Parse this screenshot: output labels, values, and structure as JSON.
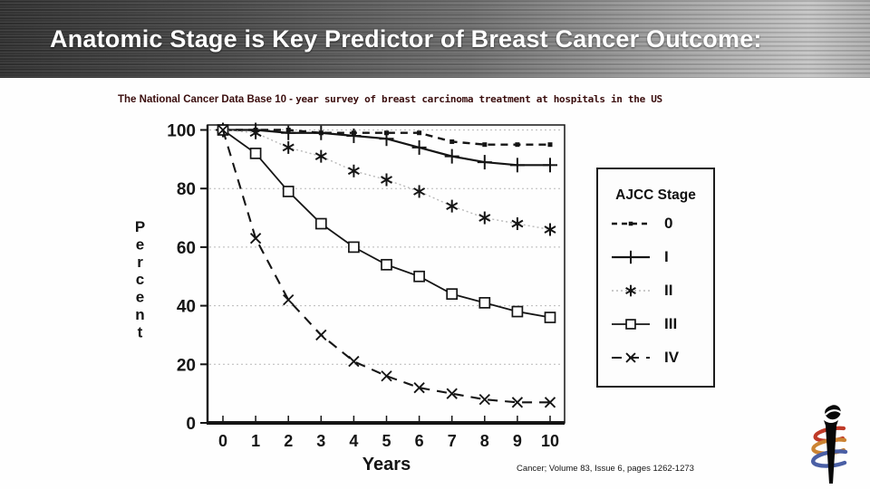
{
  "slide": {
    "title": "Anatomic Stage is Key Predictor of Breast Cancer Outcome:",
    "subtitle_part1": "The National Cancer Data Base 10 - ",
    "subtitle_part2": "year survey of breast carcinoma treatment at hospitals in the US",
    "citation": "Cancer; Volume 83, Issue 6, pages 1262-1273"
  },
  "icons": {
    "logo": "torch-with-ribbons"
  },
  "colors": {
    "header_dark": "#333333",
    "header_light": "#c7c7c7",
    "title_text": "#ffffff",
    "subtitle_text": "#3a0d0d",
    "ink": "#151515",
    "grid": "#b9b9b9",
    "logo_red": "#bf3a28",
    "logo_orange": "#cc8433",
    "logo_blue": "#4a5fa5"
  },
  "chart_data": {
    "type": "line",
    "title": "",
    "xlabel": "Years",
    "ylabel": "Percent",
    "x": [
      0,
      1,
      2,
      3,
      4,
      5,
      6,
      7,
      8,
      9,
      10
    ],
    "xlim": [
      0,
      10
    ],
    "ylim": [
      0,
      100
    ],
    "xticks": [
      0,
      1,
      2,
      3,
      4,
      5,
      6,
      7,
      8,
      9,
      10
    ],
    "yticks": [
      0,
      20,
      40,
      60,
      80,
      100
    ],
    "grid": "horizontal-dotted",
    "legend_title": "AJCC Stage",
    "legend_position": "right",
    "series": [
      {
        "name": "0",
        "marker": "dot",
        "line": "dashed",
        "values": [
          100,
          100,
          100,
          99,
          99,
          99,
          99,
          96,
          95,
          95,
          95
        ]
      },
      {
        "name": "I",
        "marker": "plus",
        "line": "solid",
        "values": [
          100,
          100,
          99,
          99,
          98,
          97,
          94,
          91,
          89,
          88,
          88
        ]
      },
      {
        "name": "II",
        "marker": "asterisk",
        "line": "dotted",
        "values": [
          100,
          99,
          94,
          91,
          86,
          83,
          79,
          74,
          70,
          68,
          66
        ]
      },
      {
        "name": "III",
        "marker": "square",
        "line": "solid",
        "values": [
          100,
          92,
          79,
          68,
          60,
          54,
          50,
          44,
          41,
          38,
          36
        ]
      },
      {
        "name": "IV",
        "marker": "x",
        "line": "dashed",
        "values": [
          100,
          63,
          42,
          30,
          21,
          16,
          12,
          10,
          8,
          7,
          7
        ]
      }
    ]
  }
}
